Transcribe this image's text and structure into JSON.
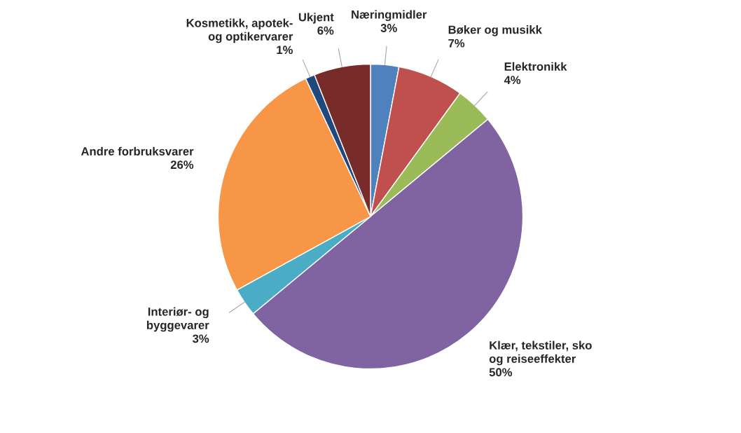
{
  "chart_data": {
    "type": "pie",
    "categories": [
      "Næringmidler",
      "Bøker og musikk",
      "Elektronikk",
      "Klær, tekstiler, sko og reiseeffekter",
      "Interiør- og byggevarer",
      "Andre forbruksvarer",
      "Kosmetikk, apotek- og optikervarer",
      "Ukjent"
    ],
    "values": [
      3,
      7,
      4,
      50,
      3,
      26,
      1,
      6
    ],
    "value_labels": [
      "3%",
      "7%",
      "4%",
      "50%",
      "3%",
      "26%",
      "1%",
      "6%"
    ],
    "colors": [
      "#4f81bd",
      "#c0504d",
      "#9bbb59",
      "#8064a2",
      "#4bacc6",
      "#f79646",
      "#1f497d",
      "#772c2a"
    ],
    "legend": false
  }
}
